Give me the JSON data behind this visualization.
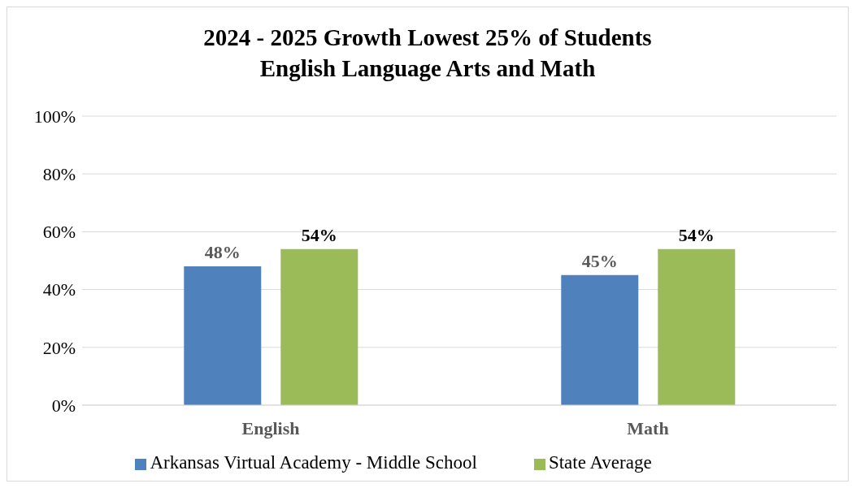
{
  "chart_data": {
    "type": "bar",
    "title": "2024 - 2025 Growth Lowest 25% of Students\nEnglish Language Arts and Math",
    "categories": [
      "English",
      "Math"
    ],
    "series": [
      {
        "name": "Arkansas Virtual Academy - Middle School",
        "color": "#4f81bd",
        "values": [
          48,
          45
        ],
        "value_labels": [
          "48%",
          "45%"
        ]
      },
      {
        "name": "State Average",
        "color": "#9bbb59",
        "values": [
          54,
          54
        ],
        "value_labels": [
          "54%",
          "54%"
        ]
      }
    ],
    "ylim": [
      0,
      100
    ],
    "yticks": [
      {
        "value": 0,
        "label": "0%"
      },
      {
        "value": 20,
        "label": "20%"
      },
      {
        "value": 40,
        "label": "40%"
      },
      {
        "value": 60,
        "label": "60%"
      },
      {
        "value": 80,
        "label": "80%"
      },
      {
        "value": 100,
        "label": "100%"
      }
    ],
    "grid": "y",
    "legend": "bottom"
  }
}
